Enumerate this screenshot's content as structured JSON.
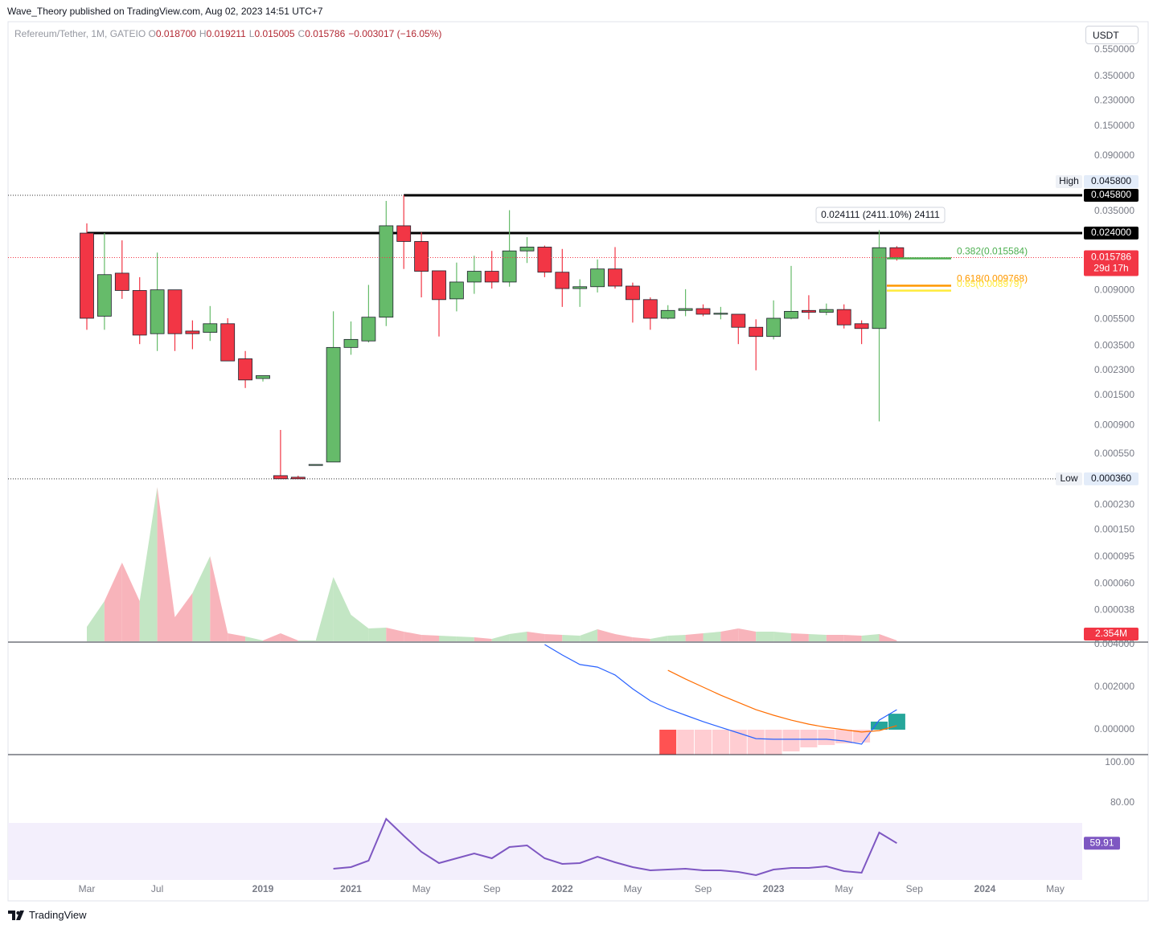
{
  "header": {
    "published": "Wave_Theory published on TradingView.com, Aug 02, 2023 14:51 UTC+7"
  },
  "currency": "USDT",
  "footer": {
    "brand": "TradingView"
  },
  "chart_data": [
    {
      "type": "candlestick",
      "log_scale": true,
      "grid": false,
      "legend": {
        "symbol": "Refereum/Tether, 1M, GATEIO",
        "ohlc": [
          {
            "key": "O",
            "text": "0.018700"
          },
          {
            "key": "H",
            "text": "0.019211"
          },
          {
            "key": "L",
            "text": "0.015005"
          },
          {
            "key": "C",
            "text": "0.015786"
          }
        ],
        "change": "−0.003017 (−16.05%)"
      },
      "categories": [
        "Mar",
        null,
        null,
        null,
        "Jul",
        null,
        null,
        null,
        null,
        null,
        "2019",
        null,
        null,
        null,
        null,
        "2021",
        null,
        null,
        null,
        "May",
        null,
        null,
        null,
        "Sep",
        null,
        null,
        null,
        "2022",
        null,
        null,
        null,
        "May",
        null,
        null,
        null,
        "Sep",
        null,
        null,
        null,
        "2023",
        null,
        null,
        null,
        "May",
        null,
        null,
        null,
        "Sep",
        null,
        null,
        null,
        "2024",
        null,
        null,
        null,
        "May"
      ],
      "open": [
        0.024,
        0.0058,
        0.0121,
        0.009,
        0.0043,
        0.0091,
        0.0045,
        0.0044,
        0.0051,
        0.0028,
        0.002,
        0.00038,
        0.00037,
        0.00046,
        0.00048,
        0.0034,
        0.0038,
        0.0057,
        0.0272,
        0.0208,
        0.0126,
        0.0078,
        0.0104,
        0.0125,
        0.0104,
        0.0177,
        0.0189,
        0.0123,
        0.0093,
        0.0096,
        0.013,
        0.0097,
        0.0077,
        0.0056,
        0.0064,
        0.0066,
        0.006,
        0.006,
        0.0048,
        0.0041,
        0.0056,
        0.0064,
        0.0062,
        0.0065,
        0.0051,
        0.0047,
        0.0187,
        null,
        null,
        null,
        null,
        null,
        null,
        null,
        null,
        null
      ],
      "high": [
        0.0283,
        0.024,
        0.0212,
        0.0113,
        0.0172,
        0.0091,
        0.0054,
        0.0069,
        0.0056,
        0.0032,
        0.0021,
        0.00083,
        0.00038,
        0.00046,
        0.0063,
        0.0053,
        0.0099,
        0.0416,
        0.0458,
        0.0243,
        0.0126,
        0.0145,
        0.0163,
        0.0177,
        0.0355,
        0.0224,
        0.0194,
        0.0183,
        0.0109,
        0.0153,
        0.0189,
        0.0103,
        0.008,
        0.007,
        0.0092,
        0.0071,
        0.0068,
        0.006,
        0.0055,
        0.0076,
        0.0137,
        0.0083,
        0.0072,
        0.0071,
        0.0054,
        0.0253,
        0.019211,
        null,
        null,
        null,
        null,
        null,
        null,
        null,
        null,
        null
      ],
      "low": [
        0.0046,
        0.0046,
        0.0078,
        0.0036,
        0.0032,
        0.0032,
        0.0033,
        0.0038,
        0.0027,
        0.0017,
        0.0019,
        0.00036,
        0.00036,
        0.00046,
        0.00048,
        0.003,
        0.0037,
        0.0049,
        0.013,
        0.008,
        0.0041,
        0.0063,
        0.0085,
        0.0093,
        0.0096,
        0.0144,
        0.0113,
        0.0068,
        0.0068,
        0.0087,
        0.0093,
        0.0052,
        0.0046,
        0.0055,
        0.0058,
        0.0058,
        0.0055,
        0.0036,
        0.0023,
        0.0039,
        0.0055,
        0.0055,
        0.0059,
        0.0047,
        0.0036,
        0.00096,
        0.015005,
        null,
        null,
        null,
        null,
        null,
        null,
        null,
        null,
        null
      ],
      "close": [
        0.0056,
        0.0118,
        0.009,
        0.0042,
        0.0091,
        0.0043,
        0.0043,
        0.0051,
        0.0027,
        0.00195,
        0.0021,
        0.00036,
        0.00036,
        0.00046,
        0.0034,
        0.0039,
        0.0057,
        0.0272,
        0.0208,
        0.0125,
        0.0077,
        0.0104,
        0.0125,
        0.0104,
        0.0177,
        0.0189,
        0.0123,
        0.0093,
        0.0096,
        0.013,
        0.0097,
        0.0077,
        0.0056,
        0.0064,
        0.0066,
        0.006,
        0.0061,
        0.0048,
        0.0041,
        0.0056,
        0.0063,
        0.0062,
        0.0065,
        0.005,
        0.0047,
        0.0187,
        0.015786,
        null,
        null,
        null,
        null,
        null,
        null,
        null,
        null,
        null
      ],
      "up_color": "#66bb6a",
      "down_color": "#f23645",
      "ylim": [
        2.24e-05,
        0.854
      ],
      "yticks": [
        {
          "value": 0.55,
          "label": "0.550000"
        },
        {
          "value": 0.35,
          "label": "0.350000"
        },
        {
          "value": 0.23,
          "label": "0.230000"
        },
        {
          "value": 0.15,
          "label": "0.150000"
        },
        {
          "value": 0.09,
          "label": "0.090000"
        },
        {
          "value": 0.035,
          "label": "0.035000"
        },
        {
          "value": 0.009,
          "label": "0.009000"
        },
        {
          "value": 0.0055,
          "label": "0.005500"
        },
        {
          "value": 0.0035,
          "label": "0.003500"
        },
        {
          "value": 0.0023,
          "label": "0.002300"
        },
        {
          "value": 0.0015,
          "label": "0.001500"
        },
        {
          "value": 0.0009,
          "label": "0.000900"
        },
        {
          "value": 0.00055,
          "label": "0.000550"
        },
        {
          "value": 0.00023,
          "label": "0.000230"
        },
        {
          "value": 0.00015,
          "label": "0.000150"
        },
        {
          "value": 9.5e-05,
          "label": "0.000095"
        },
        {
          "value": 6e-05,
          "label": "0.000060"
        },
        {
          "value": 3.8e-05,
          "label": "0.000038"
        }
      ],
      "high_mark": {
        "name": "High",
        "value": 0.0458,
        "value_label": "0.045800"
      },
      "low_mark": {
        "name": "Low",
        "value": 0.00036,
        "value_label": "0.000360"
      },
      "hlines": [
        {
          "value": 0.0458,
          "value_label": "0.045800",
          "color": "#000000"
        },
        {
          "value": 0.024,
          "value_label": "0.024000",
          "color": "#000000"
        }
      ],
      "countdown": "29d 17h",
      "last_color": "#f23645",
      "fibs": [
        {
          "label": "0.382(0.015584)",
          "value": 0.015584,
          "color": "#4caf50"
        },
        {
          "label": "0.618(0.009768)",
          "value": 0.009768,
          "color": "#ff9800"
        },
        {
          "label": "0.65(0.008979)",
          "value": 0.008979,
          "color": "#ffeb3b"
        }
      ],
      "measure": "0.024111 (2411.10%) 24111"
    },
    {
      "type": "area",
      "values": [
        36,
        100,
        196,
        100,
        384,
        60,
        120,
        212,
        20,
        12,
        2,
        20,
        2,
        2,
        160,
        66,
        32,
        34,
        24,
        16,
        14,
        12,
        10,
        6,
        18,
        24,
        18,
        16,
        14,
        30,
        18,
        10,
        6,
        14,
        16,
        20,
        24,
        32,
        24,
        24,
        20,
        18,
        16,
        16,
        14,
        18,
        2.354,
        null,
        null,
        null,
        null,
        null,
        null,
        null,
        null,
        null
      ],
      "value_labels": [
        null,
        null,
        null,
        null,
        null,
        null,
        null,
        null,
        null,
        null,
        null,
        null,
        null,
        null,
        null,
        null,
        null,
        null,
        null,
        null,
        null,
        null,
        null,
        null,
        null,
        null,
        null,
        null,
        null,
        null,
        null,
        null,
        null,
        null,
        null,
        null,
        null,
        null,
        null,
        null,
        null,
        null,
        null,
        null,
        null,
        null,
        "2.354M",
        null,
        null,
        null,
        null,
        null,
        null,
        null,
        null,
        null
      ],
      "ylim": [
        0,
        400
      ],
      "up_color": "#c3e6c4",
      "down_color": "#f8b4bb"
    },
    {
      "type": "line",
      "ylim": [
        -0.00117,
        0.004075
      ],
      "yticks": [
        {
          "value": 0.004,
          "label": "0.004000"
        },
        {
          "value": 0.002,
          "label": "0.002000"
        },
        {
          "value": 0,
          "label": "0.000000"
        }
      ],
      "series": [
        {
          "color": "#2962ff",
          "values": [
            null,
            null,
            null,
            null,
            null,
            null,
            null,
            null,
            null,
            null,
            null,
            null,
            null,
            null,
            null,
            null,
            null,
            null,
            null,
            null,
            null,
            null,
            null,
            null,
            null,
            null,
            0.004,
            0.00351,
            0.00306,
            0.00294,
            0.00257,
            0.00192,
            0.00136,
            0.00098,
            0.00068,
            0.00038,
            0.00011,
            -0.00015,
            -0.00042,
            -0.00045,
            -0.00045,
            -0.00045,
            -0.00045,
            -0.00053,
            -0.00068,
            0.00045,
            0.00094,
            null,
            null,
            null,
            null,
            null,
            null,
            null,
            null,
            null
          ]
        },
        {
          "color": "#ff6d00",
          "values": [
            null,
            null,
            null,
            null,
            null,
            null,
            null,
            null,
            null,
            null,
            null,
            null,
            null,
            null,
            null,
            null,
            null,
            null,
            null,
            null,
            null,
            null,
            null,
            null,
            null,
            null,
            null,
            null,
            null,
            null,
            null,
            null,
            null,
            0.00279,
            0.00238,
            0.002,
            0.00162,
            0.00128,
            0.00094,
            0.00068,
            0.00045,
            0.00026,
            0.00011,
            0,
            -0.00011,
            -4e-05,
            0.00019,
            null,
            null,
            null,
            null,
            null,
            null,
            null,
            null,
            null
          ]
        }
      ],
      "histogram": {
        "values": [
          null,
          null,
          null,
          null,
          null,
          null,
          null,
          null,
          null,
          null,
          null,
          null,
          null,
          null,
          null,
          null,
          null,
          null,
          null,
          null,
          null,
          null,
          null,
          null,
          null,
          null,
          null,
          null,
          null,
          null,
          null,
          null,
          null,
          -0.0018,
          -0.0017,
          -0.0016,
          -0.0015,
          -0.0014,
          -0.0014,
          -0.00117,
          -0.00102,
          -0.00083,
          -0.00072,
          -0.00064,
          -0.0006,
          0.00038,
          0.00075,
          null,
          null,
          null,
          null,
          null,
          null,
          null,
          null,
          null
        ],
        "colors": [
          null,
          null,
          null,
          null,
          null,
          null,
          null,
          null,
          null,
          null,
          null,
          null,
          null,
          null,
          null,
          null,
          null,
          null,
          null,
          null,
          null,
          null,
          null,
          null,
          null,
          null,
          null,
          null,
          null,
          null,
          null,
          null,
          null,
          "#ff5252",
          "#ffcdd2",
          "#ffcdd2",
          "#ffcdd2",
          "#ffcdd2",
          "#ffcdd2",
          "#ffcdd2",
          "#ffcdd2",
          "#ffcdd2",
          "#ffcdd2",
          "#ffcdd2",
          "#ffcdd2",
          "#26a69a",
          "#26a69a",
          null,
          null,
          null,
          null,
          null,
          null,
          null,
          null,
          null
        ]
      }
    },
    {
      "type": "line",
      "ylim": [
        41.6,
        103.6
      ],
      "yticks": [
        {
          "value": 100,
          "label": "100.00"
        },
        {
          "value": 80,
          "label": "80.00"
        }
      ],
      "band": [
        30,
        70
      ],
      "band_color": "#f3effc",
      "series": [
        {
          "color": "#7e57c2",
          "values": [
            null,
            null,
            null,
            null,
            null,
            null,
            null,
            null,
            null,
            null,
            null,
            null,
            null,
            null,
            47.2,
            48,
            51.2,
            72,
            63.6,
            55.6,
            50,
            52.4,
            54.8,
            52.4,
            58,
            58.8,
            52.4,
            49.6,
            50,
            53.2,
            50.4,
            48,
            46.4,
            46.8,
            47.2,
            46.4,
            46.4,
            45.6,
            44,
            46.8,
            47.6,
            47.6,
            48.4,
            46,
            45.2,
            65.2,
            59.91,
            null,
            null,
            null,
            null,
            null,
            null,
            null,
            null,
            null
          ]
        }
      ]
    }
  ]
}
